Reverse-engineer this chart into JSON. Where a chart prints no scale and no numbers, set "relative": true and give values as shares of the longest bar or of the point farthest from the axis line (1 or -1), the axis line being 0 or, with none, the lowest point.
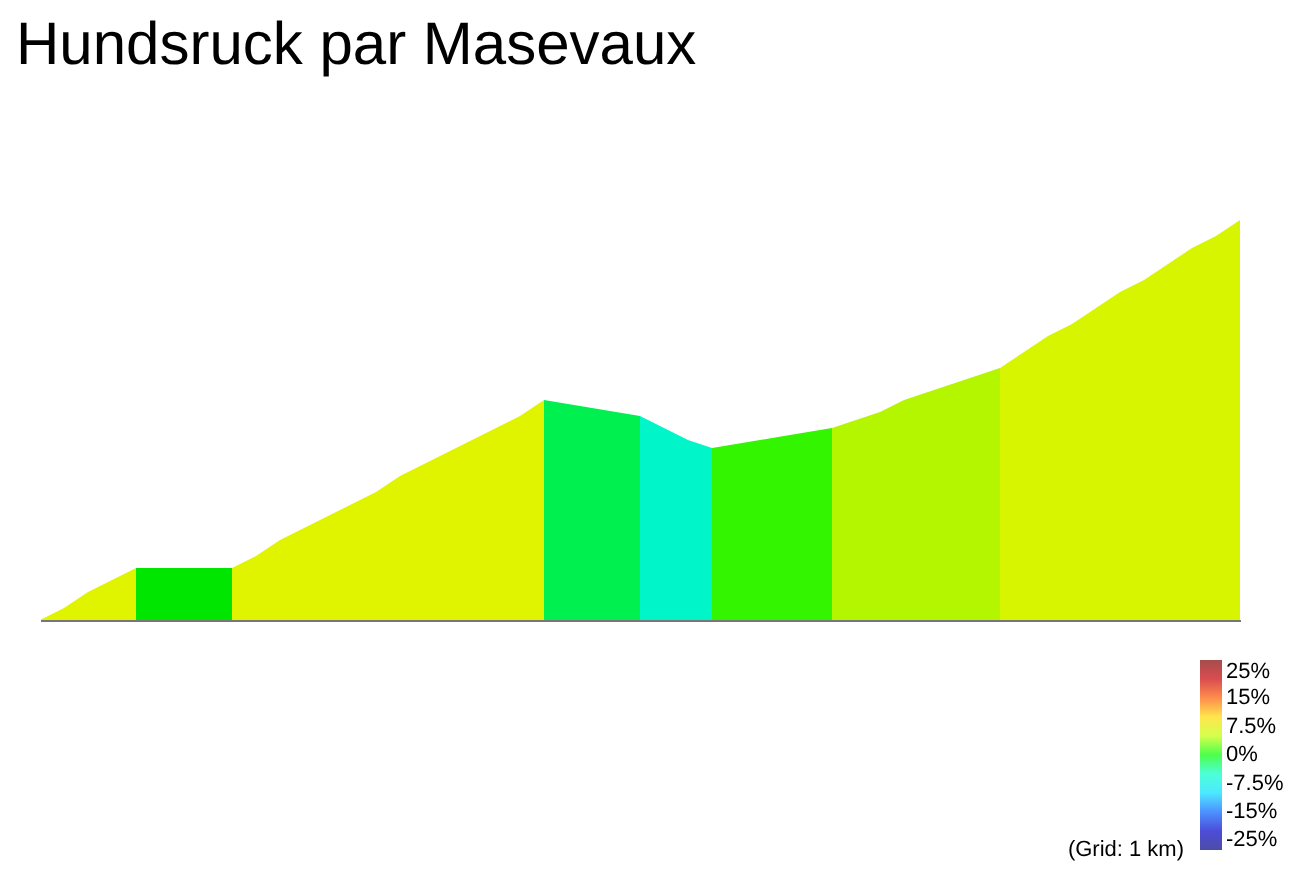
{
  "chart_data": {
    "type": "area",
    "title": "Hundsruck par Masevaux",
    "relative": true,
    "categories": [
      null,
      null,
      null,
      null,
      null,
      null,
      null,
      null,
      null,
      null,
      null,
      null,
      null,
      null,
      null,
      null,
      null,
      null,
      null,
      null,
      null,
      null,
      null,
      null,
      null,
      null,
      null,
      null,
      null,
      null,
      null,
      null,
      null,
      null,
      null,
      null,
      null,
      null,
      null,
      null,
      null,
      null,
      null,
      null,
      null,
      null,
      null,
      null,
      null,
      null,
      null
    ],
    "series": [
      {
        "color": "#e0f400",
        "values": [
          0,
          0.03,
          0.07,
          0.1,
          0.13,
          null,
          null,
          null,
          null,
          null,
          null,
          null,
          null,
          null,
          null,
          null,
          null,
          null,
          null,
          null,
          null,
          null,
          null,
          null,
          null,
          null,
          null,
          null,
          null,
          null,
          null,
          null,
          null,
          null,
          null,
          null,
          null,
          null,
          null,
          null,
          null,
          null,
          null,
          null,
          null,
          null,
          null,
          null,
          null,
          null,
          null
        ]
      },
      {
        "color": "#00e600",
        "values": [
          null,
          null,
          null,
          null,
          0.13,
          0.13,
          0.13,
          0.13,
          0.13,
          null,
          null,
          null,
          null,
          null,
          null,
          null,
          null,
          null,
          null,
          null,
          null,
          null,
          null,
          null,
          null,
          null,
          null,
          null,
          null,
          null,
          null,
          null,
          null,
          null,
          null,
          null,
          null,
          null,
          null,
          null,
          null,
          null,
          null,
          null,
          null,
          null,
          null,
          null,
          null,
          null,
          null
        ]
      },
      {
        "color": "#e0f400",
        "values": [
          null,
          null,
          null,
          null,
          null,
          null,
          null,
          null,
          0.13,
          0.16,
          0.2,
          0.23,
          0.26,
          0.29,
          0.32,
          0.36,
          0.39,
          0.42,
          0.45,
          0.48,
          0.51,
          0.55,
          null,
          null,
          null,
          null,
          null,
          null,
          null,
          null,
          null,
          null,
          null,
          null,
          null,
          null,
          null,
          null,
          null,
          null,
          null,
          null,
          null,
          null,
          null,
          null,
          null,
          null,
          null,
          null,
          null
        ]
      },
      {
        "color": "#00f050",
        "values": [
          null,
          null,
          null,
          null,
          null,
          null,
          null,
          null,
          null,
          null,
          null,
          null,
          null,
          null,
          null,
          null,
          null,
          null,
          null,
          null,
          null,
          0.55,
          0.54,
          0.53,
          0.52,
          0.51,
          null,
          null,
          null,
          null,
          null,
          null,
          null,
          null,
          null,
          null,
          null,
          null,
          null,
          null,
          null,
          null,
          null,
          null,
          null,
          null,
          null,
          null,
          null,
          null,
          null
        ]
      },
      {
        "color": "#00f5c8",
        "values": [
          null,
          null,
          null,
          null,
          null,
          null,
          null,
          null,
          null,
          null,
          null,
          null,
          null,
          null,
          null,
          null,
          null,
          null,
          null,
          null,
          null,
          null,
          null,
          null,
          null,
          0.51,
          0.48,
          0.45,
          0.43,
          null,
          null,
          null,
          null,
          null,
          null,
          null,
          null,
          null,
          null,
          null,
          null,
          null,
          null,
          null,
          null,
          null,
          null,
          null,
          null,
          null,
          null
        ]
      },
      {
        "color": "#33f500",
        "values": [
          null,
          null,
          null,
          null,
          null,
          null,
          null,
          null,
          null,
          null,
          null,
          null,
          null,
          null,
          null,
          null,
          null,
          null,
          null,
          null,
          null,
          null,
          null,
          null,
          null,
          null,
          null,
          null,
          0.43,
          0.44,
          0.45,
          0.46,
          0.47,
          0.48,
          null,
          null,
          null,
          null,
          null,
          null,
          null,
          null,
          null,
          null,
          null,
          null,
          null,
          null,
          null,
          null,
          null
        ]
      },
      {
        "color": "#b4f500",
        "values": [
          null,
          null,
          null,
          null,
          null,
          null,
          null,
          null,
          null,
          null,
          null,
          null,
          null,
          null,
          null,
          null,
          null,
          null,
          null,
          null,
          null,
          null,
          null,
          null,
          null,
          null,
          null,
          null,
          null,
          null,
          null,
          null,
          null,
          0.48,
          0.5,
          0.52,
          0.55,
          0.57,
          0.59,
          0.61,
          0.63,
          null,
          null,
          null,
          null,
          null,
          null,
          null,
          null,
          null,
          null
        ]
      },
      {
        "color": "#d8f500",
        "values": [
          null,
          null,
          null,
          null,
          null,
          null,
          null,
          null,
          null,
          null,
          null,
          null,
          null,
          null,
          null,
          null,
          null,
          null,
          null,
          null,
          null,
          null,
          null,
          null,
          null,
          null,
          null,
          null,
          null,
          null,
          null,
          null,
          null,
          null,
          null,
          null,
          null,
          null,
          null,
          null,
          0.63,
          0.67,
          0.71,
          0.74,
          0.78,
          0.82,
          0.85,
          0.89,
          0.93,
          0.96,
          1
        ]
      }
    ],
    "clim": [
      -25,
      25
    ],
    "cticks": [
      {
        "value": 25,
        "label": "25%"
      },
      {
        "value": 15,
        "label": "15%"
      },
      {
        "value": 7.5,
        "label": "7.5%"
      },
      {
        "value": 0,
        "label": "0%"
      },
      {
        "value": -7.5,
        "label": "-7.5%"
      },
      {
        "value": -15,
        "label": "-15%"
      },
      {
        "value": -25,
        "label": "-25%"
      }
    ],
    "annotations": [
      "(Grid: 1 km)"
    ]
  }
}
